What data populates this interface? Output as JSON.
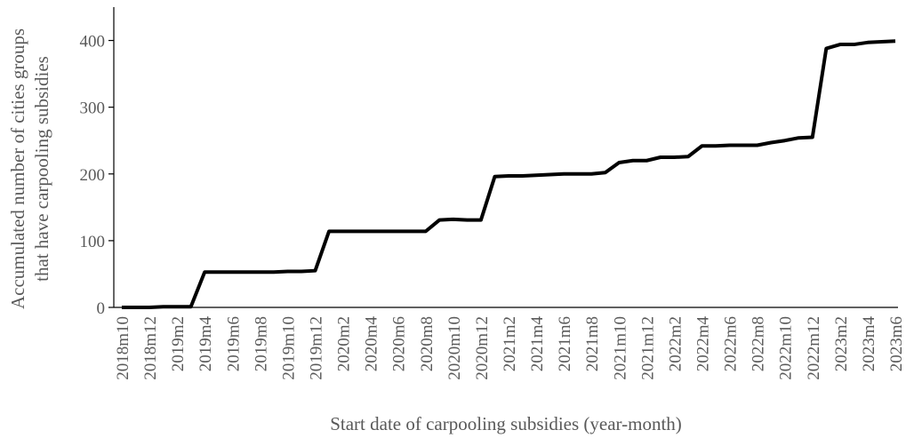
{
  "chart_data": {
    "type": "line",
    "x_label": "Start date of carpooling subsidies (year-month)",
    "y_label": [
      "Accumulated number of cities groups",
      "that have carpooling subsidies"
    ],
    "categories": [
      "2018m10",
      null,
      "2018m12",
      null,
      "2019m2",
      null,
      "2019m4",
      null,
      "2019m6",
      null,
      "2019m8",
      null,
      "2019m10",
      null,
      "2019m12",
      null,
      "2020m2",
      null,
      "2020m4",
      null,
      "2020m6",
      null,
      "2020m8",
      null,
      "2020m10",
      null,
      "2020m12",
      null,
      "2021m2",
      null,
      "2021m4",
      null,
      "2021m6",
      null,
      "2021m8",
      null,
      "2021m10",
      null,
      "2021m12",
      null,
      "2022m2",
      null,
      "2022m4",
      null,
      "2022m6",
      null,
      "2022m8",
      null,
      "2022m10",
      null,
      "2022m12",
      null,
      "2023m2",
      null,
      "2023m4",
      null,
      "2023m6"
    ],
    "values": [
      0,
      0,
      0,
      1,
      1,
      1,
      53,
      53,
      53,
      53,
      53,
      53,
      54,
      54,
      55,
      114,
      114,
      114,
      114,
      114,
      114,
      114,
      114,
      131,
      132,
      131,
      131,
      196,
      197,
      197,
      198,
      199,
      200,
      200,
      200,
      202,
      217,
      220,
      220,
      225,
      225,
      226,
      242,
      242,
      243,
      243,
      243,
      247,
      250,
      254,
      255,
      388,
      394,
      394,
      397,
      398,
      399
    ],
    "color": "#000000",
    "ylim": [
      0,
      450
    ],
    "yticks": [
      0,
      100,
      200,
      300,
      400
    ],
    "grid": false
  }
}
